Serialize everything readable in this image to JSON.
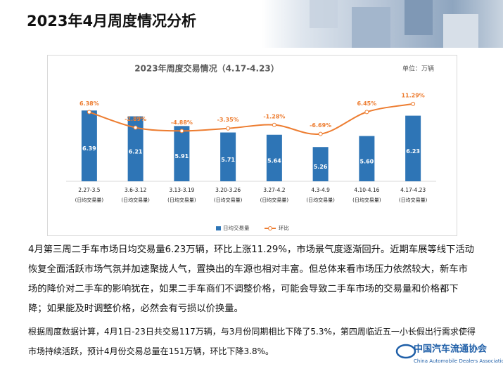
{
  "slide_title": "2023年4月周度情况分析",
  "chart_data": {
    "type": "bar",
    "title": "2023年周度交易情况（4.17-4.23）",
    "unit": "单位：万辆",
    "categories": [
      "2.27-3.5",
      "3.6-3.12",
      "3.13-3.19",
      "3.20-3.26",
      "3.27-4.2",
      "4.3-4.9",
      "4.10-4.16",
      "4.17-4.23"
    ],
    "category_note": "(日均交易量)",
    "series": [
      {
        "name": "日均交易量",
        "type": "bar",
        "color": "#2e75b6",
        "values": [
          6.39,
          6.21,
          5.91,
          5.71,
          5.64,
          5.26,
          5.6,
          6.23
        ],
        "value_labels": [
          "6.39",
          "6.21",
          "5.91",
          "5.71",
          "5.64",
          "5.26",
          "5.60",
          "6.23"
        ]
      },
      {
        "name": "环比",
        "type": "line",
        "axis": "y2",
        "color": "#ed7d31",
        "values": [
          6.38,
          -2.89,
          -4.88,
          -3.35,
          -1.28,
          -6.69,
          6.45,
          11.29
        ],
        "value_labels": [
          "6.38%",
          "-2.89%",
          "-4.88%",
          "-3.35%",
          "-1.28%",
          "-6.69%",
          "6.45%",
          "11.29%"
        ]
      }
    ],
    "ylim": [
      4.2,
      7.2
    ],
    "y2lim": [
      -35,
      23
    ],
    "legend": "bottom"
  },
  "paragraphs": [
    "4月第三周二手车市场日均交易量6.23万辆，环比上涨11.29%，市场景气度逐渐回升。近期车展等线下活动恢复全面活跃市场气氛并加速聚拢人气，置换出的车源也相对丰富。但总体来看市场压力依然较大，新车市场的降价对二手车的影响犹在，如果二手车商们不调整价格，可能会导致二手车市场的交易量和价格都下降；如果能及时调整价格，必然会有亏损以价换量。",
    "根据周度数据计算，4月1日-23日共交易117万辆，与3月份同期相比下降了5.3%，第四周临近五一小长假出行需求使得市场持续活跃，预计4月份交易总量在151万辆，环比下降3.8%。"
  ],
  "logo": {
    "name": "中国汽车流通协会",
    "english": "China Automobile Dealers Association"
  }
}
